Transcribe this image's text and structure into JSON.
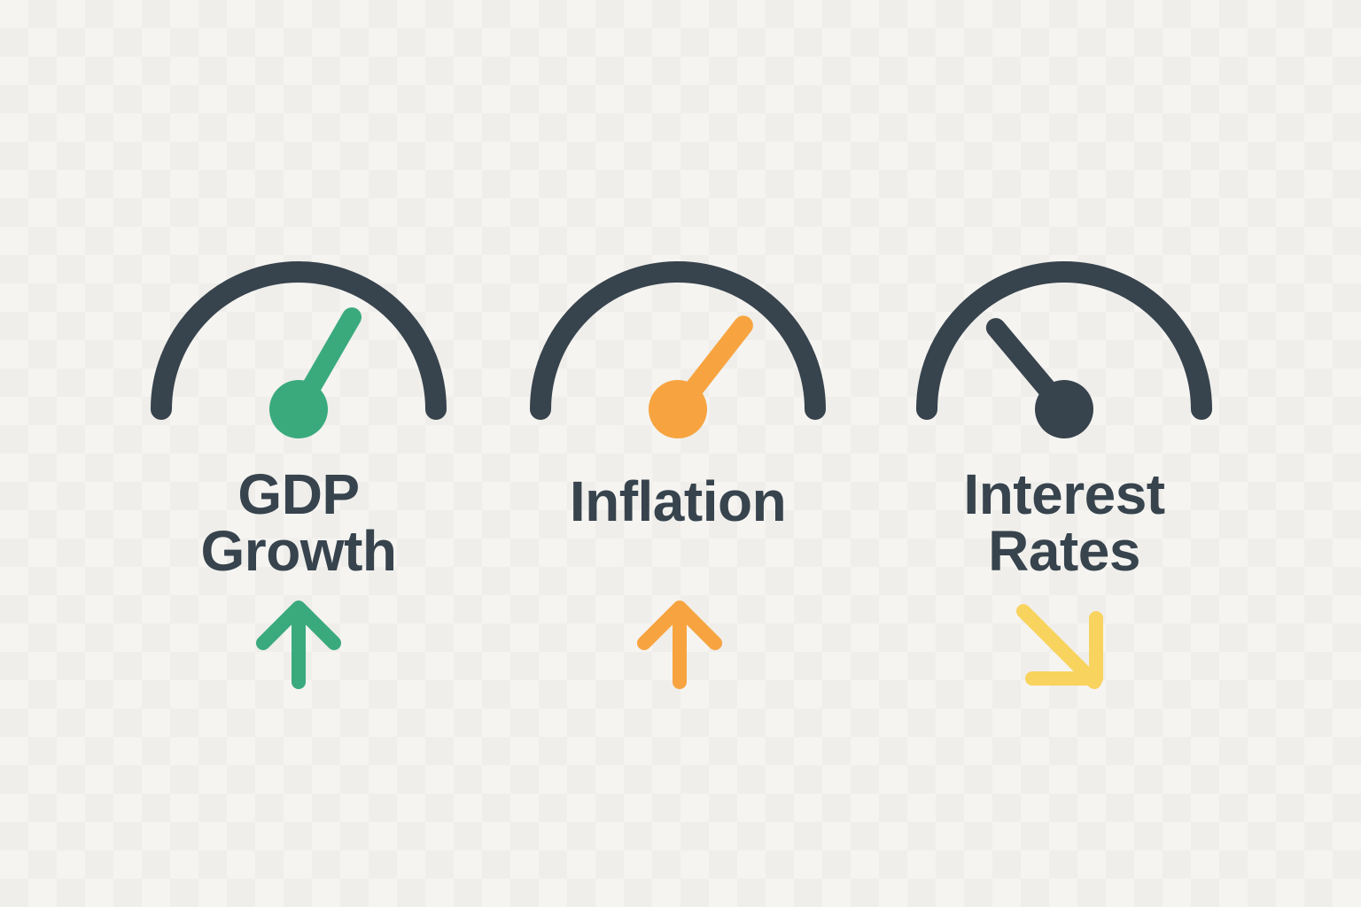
{
  "colors": {
    "background": "#f5f4f1",
    "dial": "#37434d",
    "green": "#3aaa7d",
    "orange": "#f7a440",
    "yellow": "#f8d35e"
  },
  "gauges": [
    {
      "label_lines": [
        "GDP",
        "Growth"
      ],
      "needle_color": "#3aaa7d",
      "needle_angle_deg": 30,
      "trend": "up",
      "trend_icon": "arrow-up-icon",
      "trend_color": "#3aaa7d"
    },
    {
      "label_lines": [
        "Inflation"
      ],
      "needle_color": "#f7a440",
      "needle_angle_deg": 38,
      "trend": "up",
      "trend_icon": "arrow-up-icon",
      "trend_color": "#f7a440"
    },
    {
      "label_lines": [
        "Interest",
        "Rates"
      ],
      "needle_color": "#37434d",
      "needle_angle_deg": -40,
      "trend": "down-right",
      "trend_icon": "arrow-down-right-icon",
      "trend_color": "#f8d35e"
    }
  ]
}
